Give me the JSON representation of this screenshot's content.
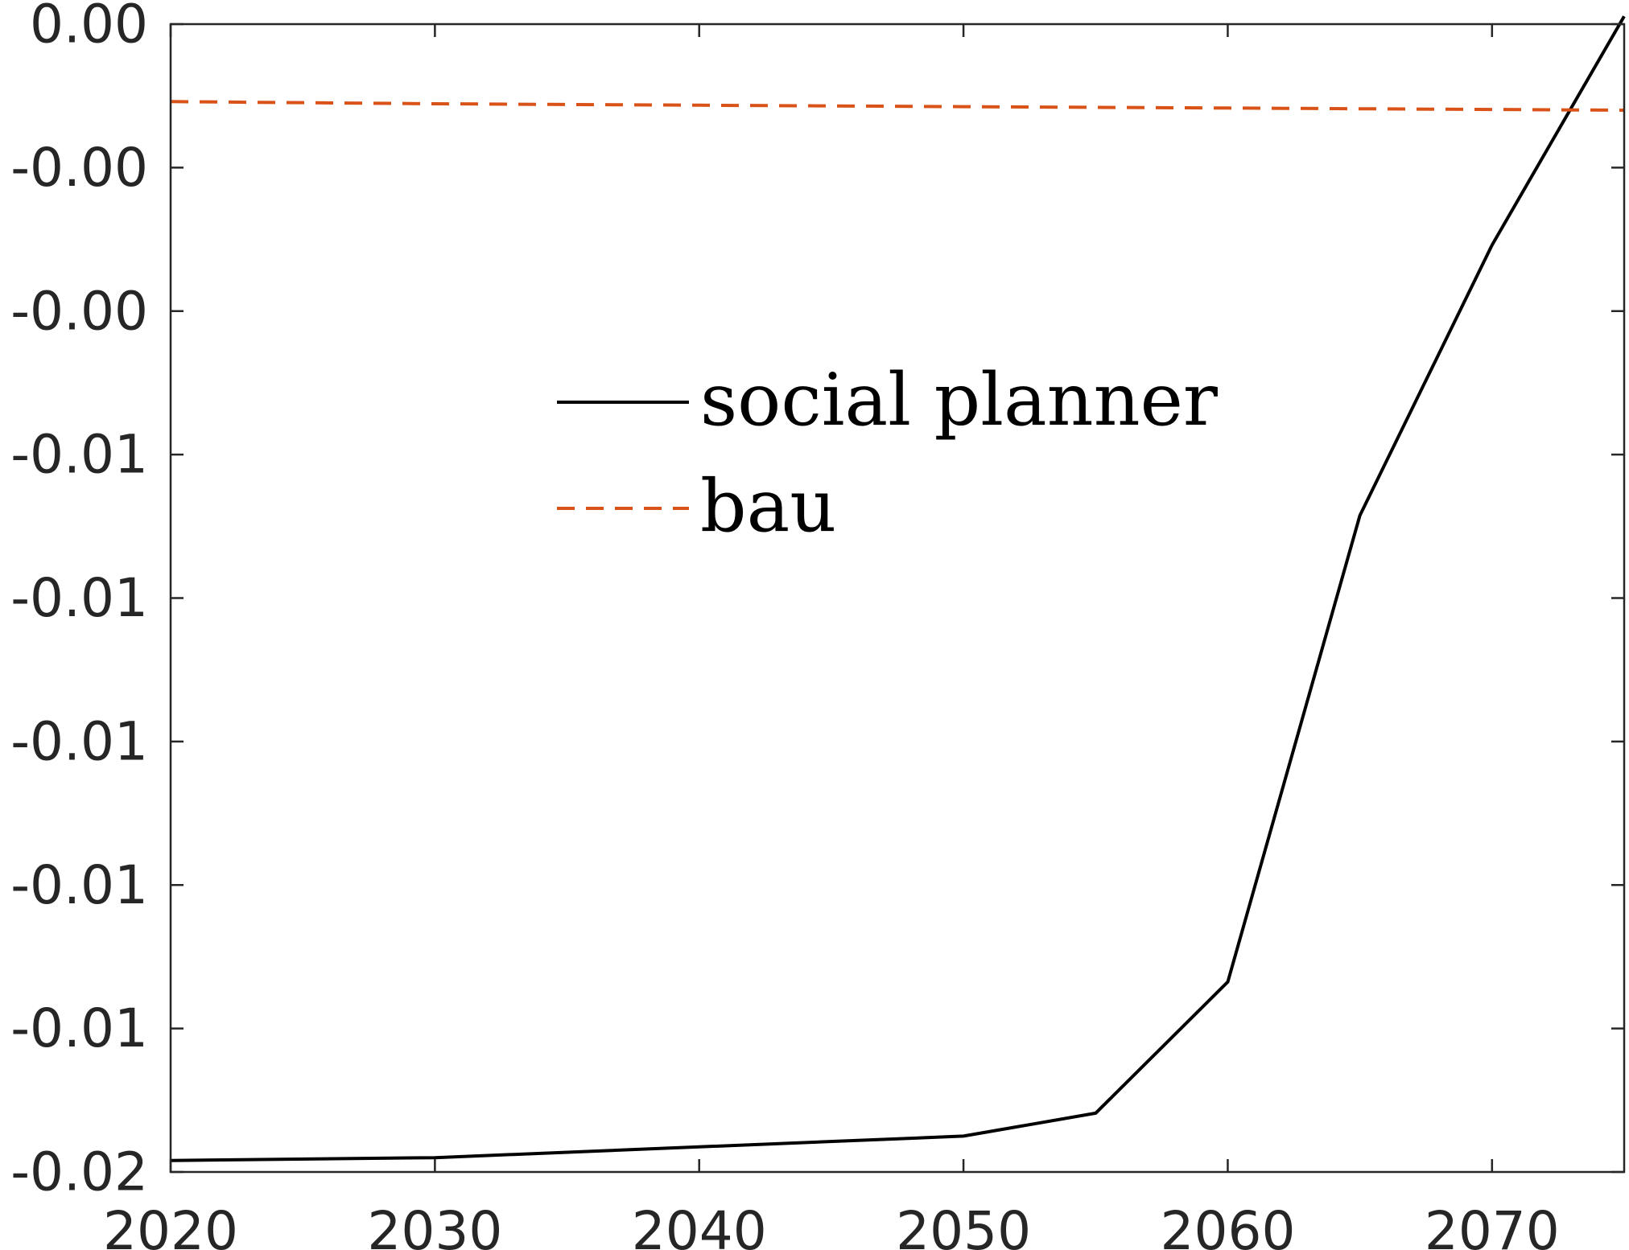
{
  "chart_data": {
    "type": "line",
    "title": "",
    "xlabel": "",
    "ylabel": "",
    "xlim": [
      2020,
      2075
    ],
    "ylim": [
      -0.016,
      0.0
    ],
    "x_ticks": [
      2020,
      2030,
      2040,
      2050,
      2060,
      2070
    ],
    "x_tick_labels": [
      "2020",
      "2030",
      "2040",
      "2050",
      "2060",
      "2070"
    ],
    "y_ticks": [
      0.0,
      -0.002,
      -0.004,
      -0.006,
      -0.008,
      -0.01,
      -0.012,
      -0.014,
      -0.016
    ],
    "y_tick_labels": [
      "0.00",
      "-0.00",
      "-0.00",
      "-0.01",
      "-0.01",
      "-0.01",
      "-0.01",
      "-0.01",
      "-0.02"
    ],
    "grid": false,
    "legend_placement": "center",
    "series": [
      {
        "name": "social planner",
        "color": "#000000",
        "line_style": "solid",
        "x": [
          2020,
          2030,
          2040,
          2050,
          2055,
          2060,
          2065,
          2070,
          2075
        ],
        "y": [
          -0.01584,
          -0.0158,
          -0.01565,
          -0.0155,
          -0.01518,
          -0.01335,
          -0.00685,
          -0.00308,
          0.00011
        ]
      },
      {
        "name": "bau",
        "color": "#D95319",
        "line_style": "dashed",
        "x": [
          2020,
          2030,
          2040,
          2050,
          2060,
          2070,
          2075
        ],
        "y": [
          -0.00108,
          -0.00111,
          -0.00113,
          -0.00115,
          -0.00117,
          -0.00119,
          -0.0012
        ]
      }
    ]
  }
}
